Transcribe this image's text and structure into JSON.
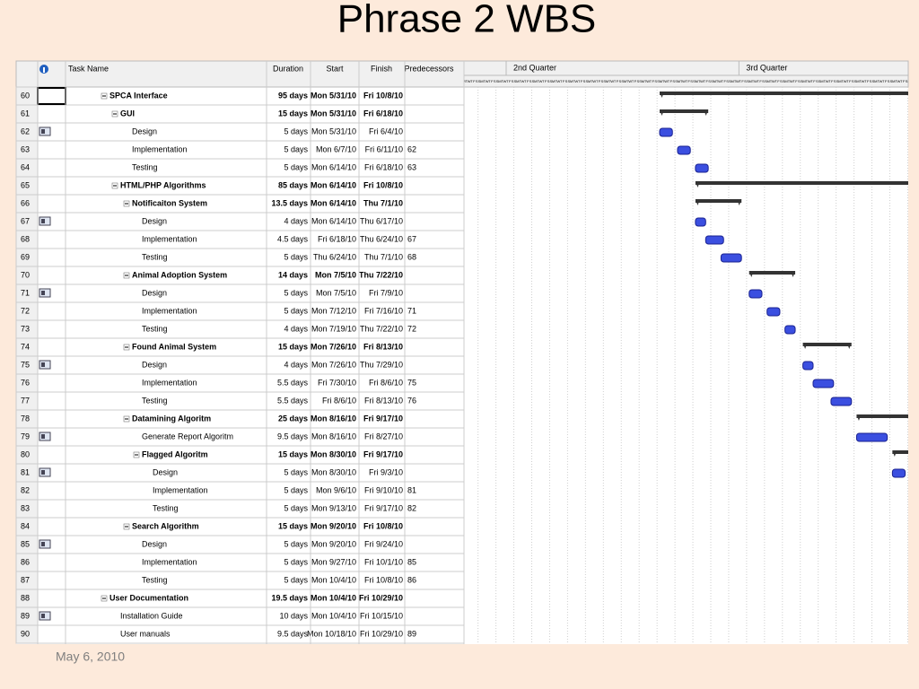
{
  "title": "Phrase 2 WBS",
  "footer": "May 6, 2010",
  "table": {
    "columns": {
      "name": "Task Name",
      "duration": "Duration",
      "start": "Start",
      "finish": "Finish",
      "predecessors": "Predecessors"
    },
    "rows": [
      {
        "id": 60,
        "name": "SPCA Interface",
        "duration": "95 days",
        "start": "Mon 5/31/10",
        "finish": "Fri 10/8/10"
      },
      {
        "id": 61,
        "name": "GUI",
        "duration": "15 days",
        "start": "Mon 5/31/10",
        "finish": "Fri 6/18/10"
      },
      {
        "id": 62,
        "name": "Design",
        "duration": "5 days",
        "start": "Mon 5/31/10",
        "finish": "Fri 6/4/10"
      },
      {
        "id": 63,
        "name": "Implementation",
        "duration": "5 days",
        "start": "Mon 6/7/10",
        "finish": "Fri 6/11/10",
        "predecessors": "62"
      },
      {
        "id": 64,
        "name": "Testing",
        "duration": "5 days",
        "start": "Mon 6/14/10",
        "finish": "Fri 6/18/10",
        "predecessors": "63"
      },
      {
        "id": 65,
        "name": "HTML/PHP Algorithms",
        "duration": "85 days",
        "start": "Mon 6/14/10",
        "finish": "Fri 10/8/10"
      },
      {
        "id": 66,
        "name": "Notificaiton System",
        "duration": "13.5 days",
        "start": "Mon 6/14/10",
        "finish": "Thu 7/1/10"
      },
      {
        "id": 67,
        "name": "Design",
        "duration": "4 days",
        "start": "Mon 6/14/10",
        "finish": "Thu 6/17/10"
      },
      {
        "id": 68,
        "name": "Implementation",
        "duration": "4.5 days",
        "start": "Fri 6/18/10",
        "finish": "Thu 6/24/10",
        "predecessors": "67"
      },
      {
        "id": 69,
        "name": "Testing",
        "duration": "5 days",
        "start": "Thu 6/24/10",
        "finish": "Thu 7/1/10",
        "predecessors": "68"
      },
      {
        "id": 70,
        "name": "Animal Adoption System",
        "duration": "14 days",
        "start": "Mon 7/5/10",
        "finish": "Thu 7/22/10"
      },
      {
        "id": 71,
        "name": "Design",
        "duration": "5 days",
        "start": "Mon 7/5/10",
        "finish": "Fri 7/9/10"
      },
      {
        "id": 72,
        "name": "Implementation",
        "duration": "5 days",
        "start": "Mon 7/12/10",
        "finish": "Fri 7/16/10",
        "predecessors": "71"
      },
      {
        "id": 73,
        "name": "Testing",
        "duration": "4 days",
        "start": "Mon 7/19/10",
        "finish": "Thu 7/22/10",
        "predecessors": "72"
      },
      {
        "id": 74,
        "name": "Found Animal System",
        "duration": "15 days",
        "start": "Mon 7/26/10",
        "finish": "Fri 8/13/10"
      },
      {
        "id": 75,
        "name": "Design",
        "duration": "4 days",
        "start": "Mon 7/26/10",
        "finish": "Thu 7/29/10"
      },
      {
        "id": 76,
        "name": "Implementation",
        "duration": "5.5 days",
        "start": "Fri 7/30/10",
        "finish": "Fri 8/6/10",
        "predecessors": "75"
      },
      {
        "id": 77,
        "name": "Testing",
        "duration": "5.5 days",
        "start": "Fri 8/6/10",
        "finish": "Fri 8/13/10",
        "predecessors": "76"
      },
      {
        "id": 78,
        "name": "Datamining Algoritm",
        "duration": "25 days",
        "start": "Mon 8/16/10",
        "finish": "Fri 9/17/10"
      },
      {
        "id": 79,
        "name": "Generate Report Algoritm",
        "duration": "9.5 days",
        "start": "Mon 8/16/10",
        "finish": "Fri 8/27/10"
      },
      {
        "id": 80,
        "name": "Flagged Algoritm",
        "duration": "15 days",
        "start": "Mon 8/30/10",
        "finish": "Fri 9/17/10"
      },
      {
        "id": 81,
        "name": "Design",
        "duration": "5 days",
        "start": "Mon 8/30/10",
        "finish": "Fri 9/3/10"
      },
      {
        "id": 82,
        "name": "Implementation",
        "duration": "5 days",
        "start": "Mon 9/6/10",
        "finish": "Fri 9/10/10",
        "predecessors": "81"
      },
      {
        "id": 83,
        "name": "Testing",
        "duration": "5 days",
        "start": "Mon 9/13/10",
        "finish": "Fri 9/17/10",
        "predecessors": "82"
      },
      {
        "id": 84,
        "name": "Search Algorithm",
        "duration": "15 days",
        "start": "Mon 9/20/10",
        "finish": "Fri 10/8/10"
      },
      {
        "id": 85,
        "name": "Design",
        "duration": "5 days",
        "start": "Mon 9/20/10",
        "finish": "Fri 9/24/10"
      },
      {
        "id": 86,
        "name": "Implementation",
        "duration": "5 days",
        "start": "Mon 9/27/10",
        "finish": "Fri 10/1/10",
        "predecessors": "85"
      },
      {
        "id": 87,
        "name": "Testing",
        "duration": "5 days",
        "start": "Mon 10/4/10",
        "finish": "Fri 10/8/10",
        "predecessors": "86"
      },
      {
        "id": 88,
        "name": "User Documentation",
        "duration": "19.5 days",
        "start": "Mon 10/4/10",
        "finish": "Fri 10/29/10"
      },
      {
        "id": 89,
        "name": "Installation Guide",
        "duration": "10 days",
        "start": "Mon 10/4/10",
        "finish": "Fri 10/15/10"
      },
      {
        "id": 90,
        "name": "User manuals",
        "duration": "9.5 days",
        "start": "Mon 10/18/10",
        "finish": "Fri 10/29/10",
        "predecessors": "89"
      }
    ]
  },
  "timeline": {
    "quarters": [
      "2nd Quarter",
      "3rd Quarter"
    ],
    "day_letters": [
      "S",
      "M",
      "T",
      "W",
      "T",
      "F",
      "S"
    ]
  }
}
